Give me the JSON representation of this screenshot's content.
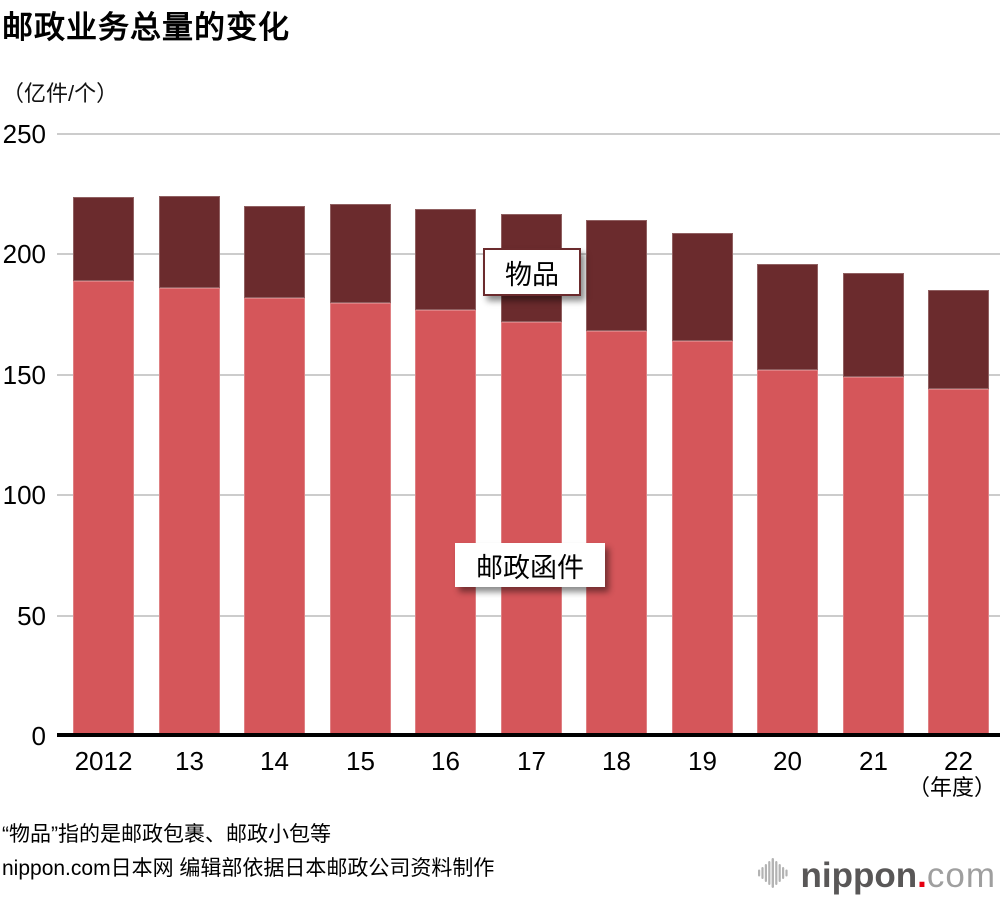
{
  "title": "邮政业务总量的变化",
  "unit_label": "（亿件/个）",
  "x_axis_suffix": "（年度）",
  "footnotes": [
    "“物品”指的是邮政包裹、邮政小包等",
    "nippon.com日本网 编辑部依据日本邮政公司资料制作"
  ],
  "logo": {
    "text_bold": "nippon",
    "dot": ".",
    "text_light": "com"
  },
  "icons": {
    "logo_mark": "soundwave-bars-icon"
  },
  "colors": {
    "mail": "#d5565a",
    "goods": "#6b2b2d",
    "grid": "#cccccc",
    "axis": "#000000",
    "logo_dark": "#595757",
    "logo_light": "#9f9f9f",
    "logo_red": "#e60012",
    "logo_icon": "#b3b3b3"
  },
  "chart_data": {
    "type": "bar",
    "stacked": true,
    "title": "邮政业务总量的变化",
    "xlabel": "年度",
    "ylabel": "亿件/个",
    "categories": [
      "2012",
      "13",
      "14",
      "15",
      "16",
      "17",
      "18",
      "19",
      "20",
      "21",
      "22"
    ],
    "series": [
      {
        "name": "邮政函件",
        "color": "#d5565a",
        "values": [
          189,
          186,
          182,
          180,
          177,
          172,
          168,
          164,
          152,
          149,
          144
        ]
      },
      {
        "name": "物品",
        "color": "#6b2b2d",
        "values": [
          35,
          38,
          38,
          41,
          42,
          45,
          46,
          45,
          44,
          43,
          41
        ]
      }
    ],
    "totals": [
      224,
      224,
      220,
      221,
      219,
      217,
      214,
      209,
      196,
      192,
      185
    ],
    "ylim": [
      0,
      250
    ],
    "yticks": [
      0,
      50,
      100,
      150,
      200,
      250
    ],
    "grid": true,
    "legend_position": "inline-annotations"
  }
}
